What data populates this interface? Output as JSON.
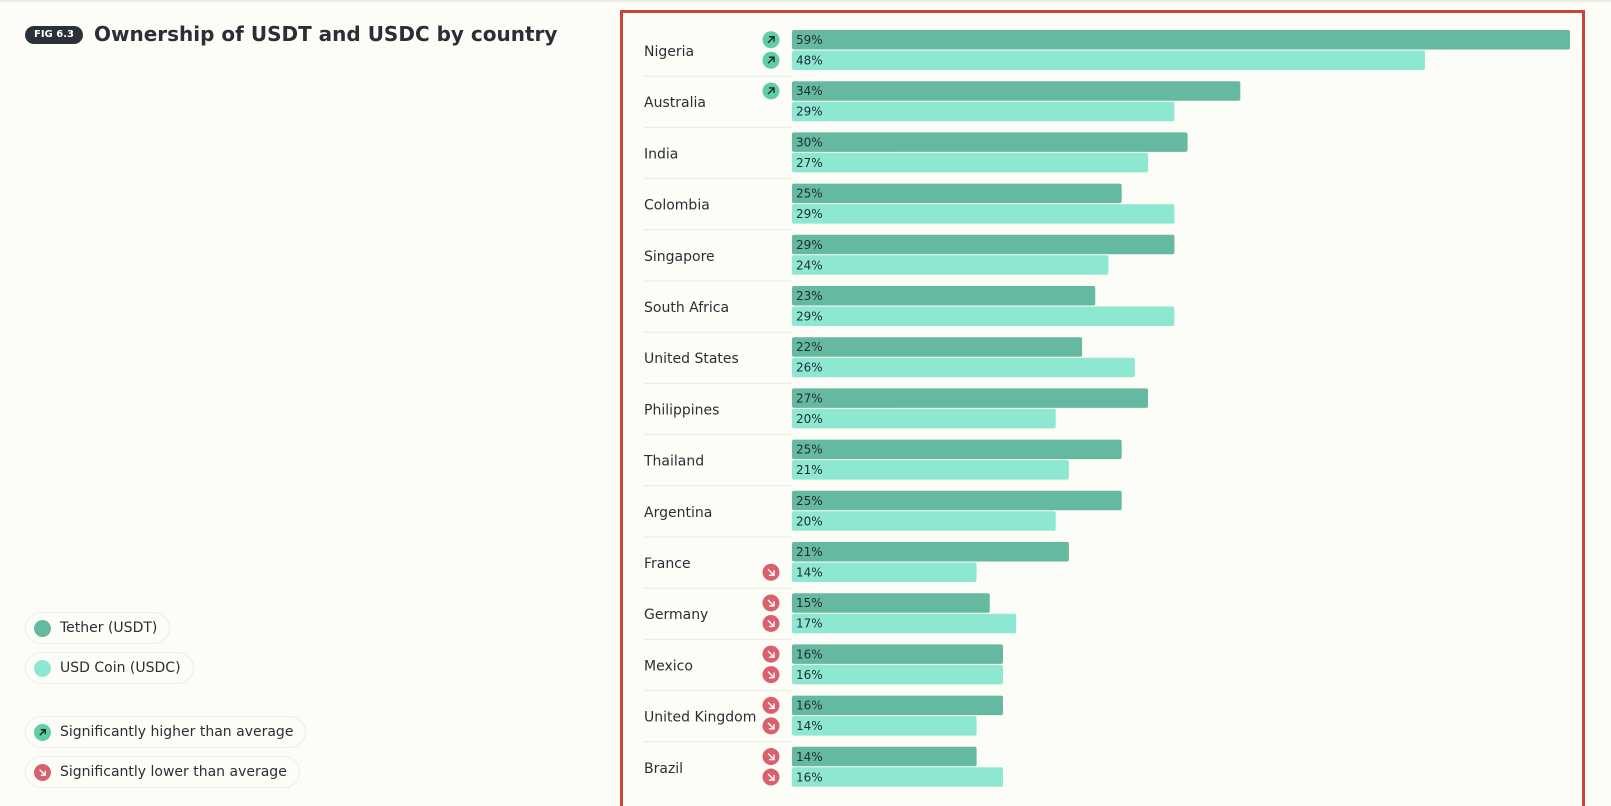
{
  "figure": {
    "badge": "FIG 6.3",
    "title": "Ownership of USDT and USDC by country"
  },
  "legend": {
    "series": [
      {
        "label": "Tether (USDT)",
        "color": "#66b9a1"
      },
      {
        "label": "USD Coin (USDC)",
        "color": "#8ee8d1"
      }
    ],
    "significance": [
      {
        "label": "Significantly higher than average",
        "icon": "arrow-up-right-icon",
        "color": "#5fcfa3"
      },
      {
        "label": "Significantly lower than average",
        "icon": "arrow-down-right-icon",
        "color": "#d9606d"
      }
    ]
  },
  "chart_data": {
    "type": "bar",
    "orientation": "horizontal",
    "categories": [
      "Nigeria",
      "Australia",
      "India",
      "Colombia",
      "Singapore",
      "South Africa",
      "United States",
      "Philippines",
      "Thailand",
      "Argentina",
      "France",
      "Germany",
      "Mexico",
      "United Kingdom",
      "Brazil"
    ],
    "series": [
      {
        "name": "Tether (USDT)",
        "values": [
          59,
          34,
          30,
          25,
          29,
          23,
          22,
          27,
          25,
          25,
          21,
          15,
          16,
          16,
          14
        ]
      },
      {
        "name": "USD Coin (USDC)",
        "values": [
          48,
          29,
          27,
          29,
          24,
          29,
          26,
          20,
          21,
          20,
          14,
          17,
          16,
          14,
          16
        ]
      }
    ],
    "value_suffix": "%",
    "significance": [
      [
        "higher",
        "higher"
      ],
      [
        "higher",
        null
      ],
      [
        null,
        null
      ],
      [
        null,
        null
      ],
      [
        null,
        null
      ],
      [
        null,
        null
      ],
      [
        null,
        null
      ],
      [
        null,
        null
      ],
      [
        null,
        null
      ],
      [
        null,
        null
      ],
      [
        null,
        "lower"
      ],
      [
        "lower",
        "lower"
      ],
      [
        "lower",
        "lower"
      ],
      [
        "lower",
        "lower"
      ],
      [
        "lower",
        "lower"
      ]
    ],
    "xlim": [
      0,
      59
    ],
    "grid": false
  }
}
